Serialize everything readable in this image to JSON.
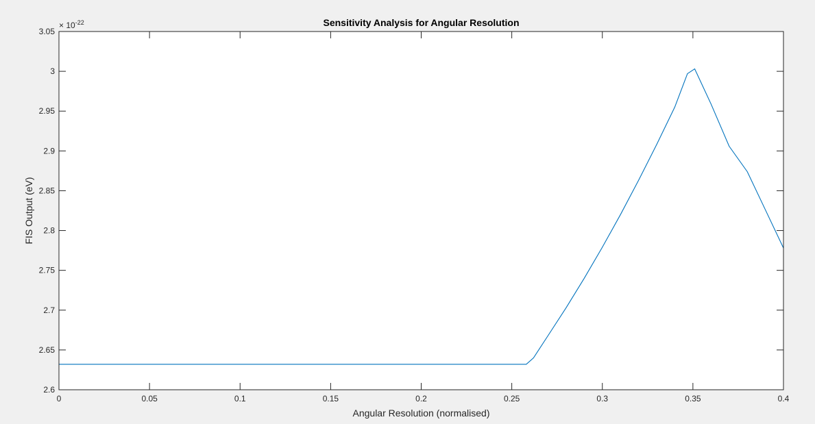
{
  "chart_data": {
    "type": "line",
    "title": "Sensitivity Analysis for Angular Resolution",
    "xlabel": "Angular Resolution (normalised)",
    "ylabel": "FIS Output (eV)",
    "xlim": [
      0,
      0.4
    ],
    "ylim": [
      2.6,
      3.05
    ],
    "y_exponent_label": "× 10",
    "y_exponent_power": "-22",
    "x_ticks": [
      0,
      0.05,
      0.1,
      0.15,
      0.2,
      0.25,
      0.3,
      0.35,
      0.4
    ],
    "x_tick_labels": [
      "0",
      "0.05",
      "0.1",
      "0.15",
      "0.2",
      "0.25",
      "0.3",
      "0.35",
      "0.4"
    ],
    "y_ticks": [
      2.6,
      2.65,
      2.7,
      2.75,
      2.8,
      2.85,
      2.9,
      2.95,
      3.0,
      3.05
    ],
    "y_tick_labels": [
      "2.6",
      "2.65",
      "2.7",
      "2.75",
      "2.8",
      "2.85",
      "2.9",
      "2.95",
      "3",
      "3.05"
    ],
    "grid": false,
    "line_color": "#0072bd",
    "series": [
      {
        "x": [
          0,
          0.05,
          0.1,
          0.15,
          0.2,
          0.25,
          0.258,
          0.262,
          0.27,
          0.28,
          0.29,
          0.3,
          0.31,
          0.32,
          0.33,
          0.34,
          0.347,
          0.351,
          0.36,
          0.37,
          0.38,
          0.39,
          0.4
        ],
        "values": [
          2.632,
          2.632,
          2.632,
          2.632,
          2.632,
          2.632,
          2.632,
          2.64,
          2.668,
          2.703,
          2.74,
          2.779,
          2.82,
          2.863,
          2.908,
          2.955,
          2.997,
          3.003,
          2.959,
          2.906,
          2.874,
          2.826,
          2.778
        ]
      }
    ]
  }
}
